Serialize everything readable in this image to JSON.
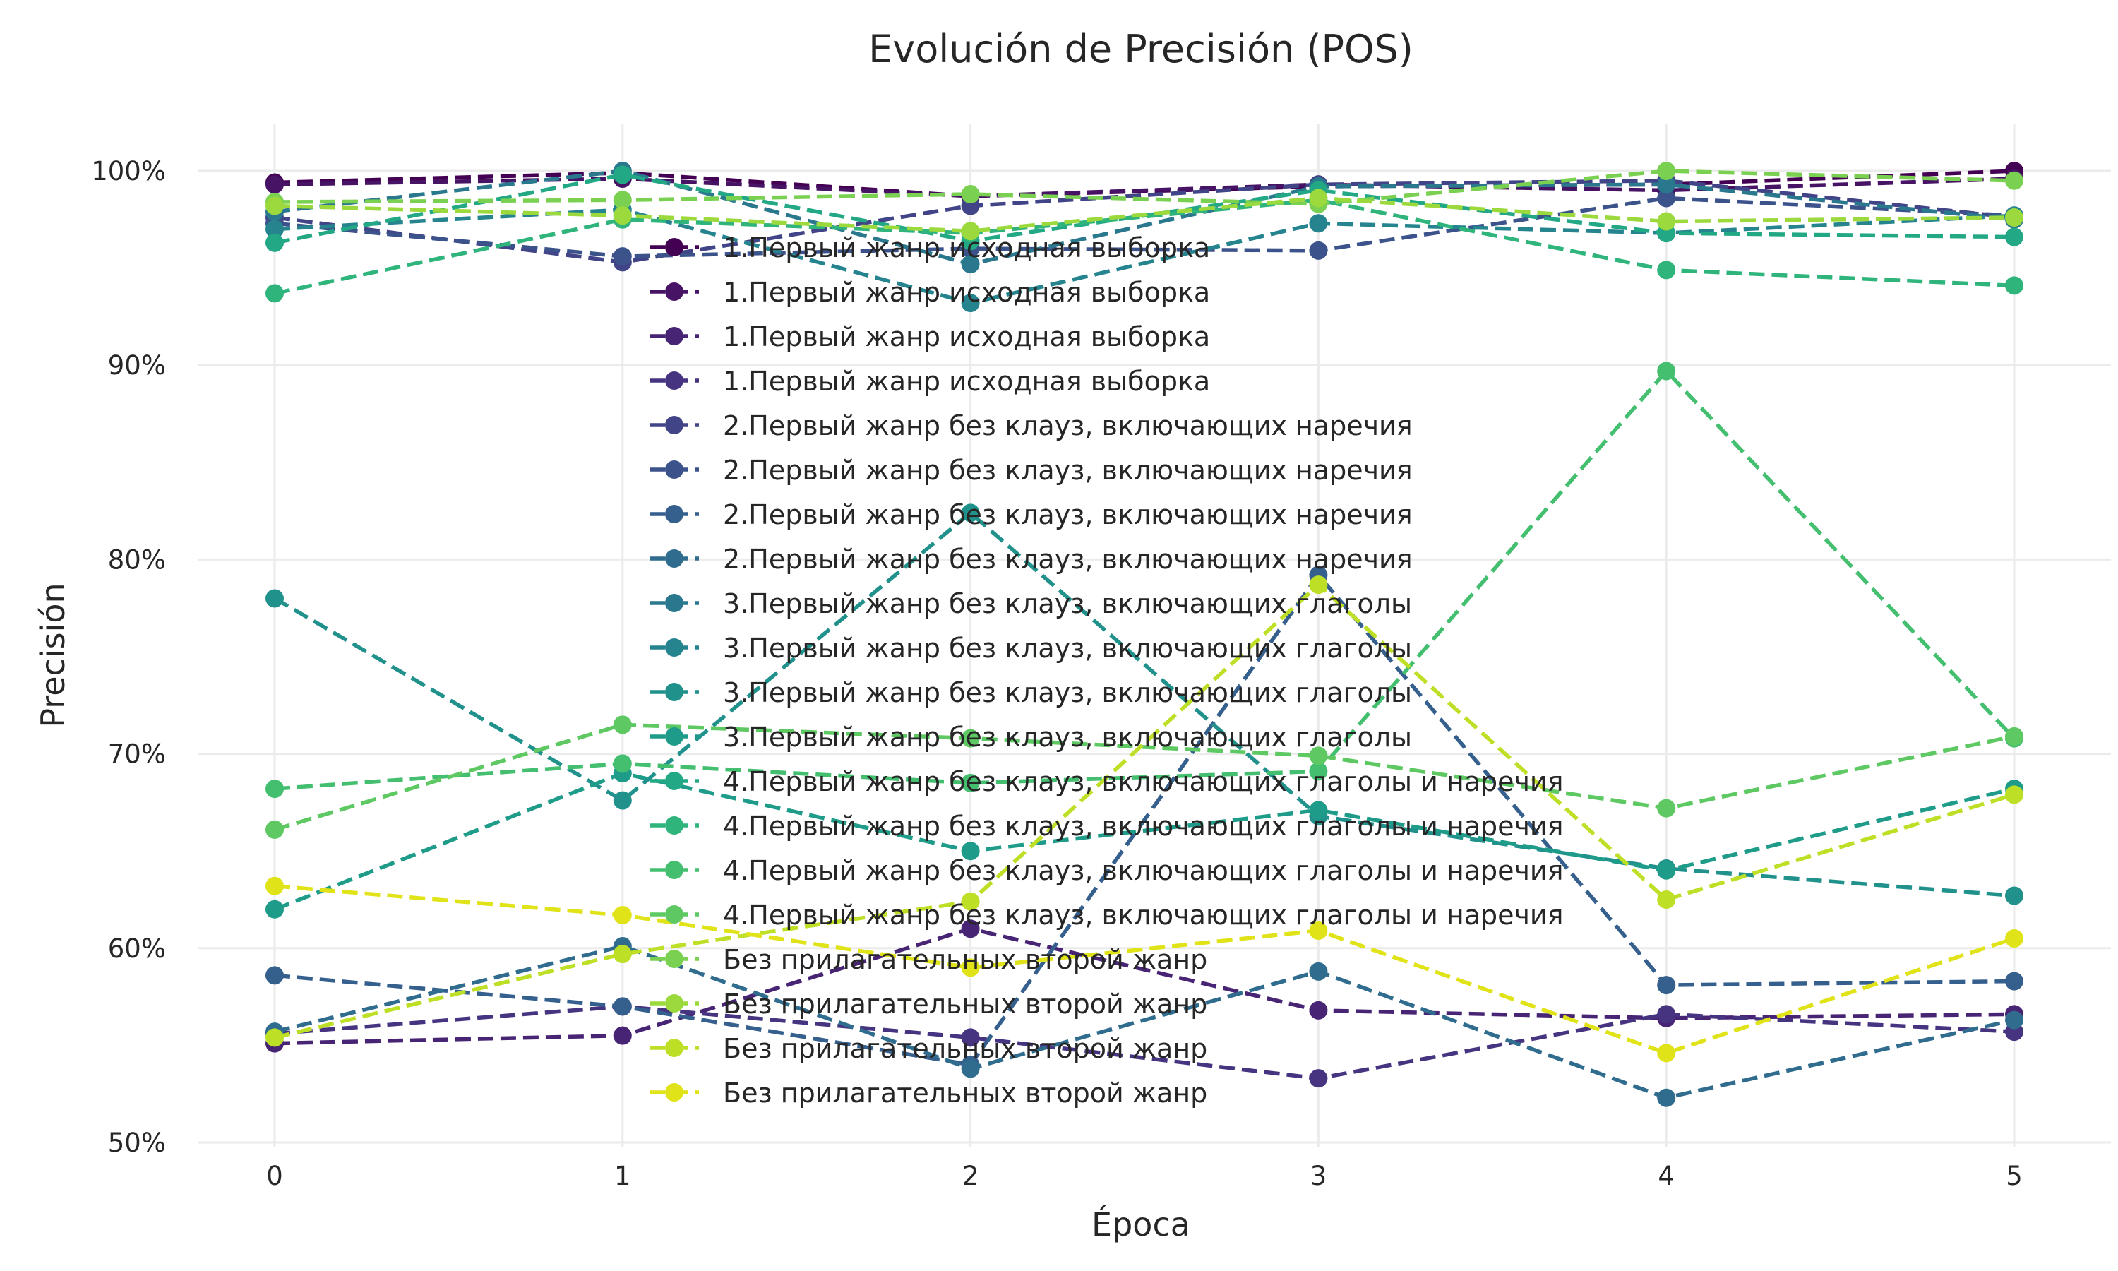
{
  "chart_data": {
    "type": "line",
    "title": "Evolución de Precisión (POS)",
    "xlabel": "Época",
    "ylabel": "Precisión",
    "x": [
      0,
      1,
      2,
      3,
      4,
      5
    ],
    "x_ticks": [
      "0",
      "1",
      "2",
      "3",
      "4",
      "5"
    ],
    "y_ticks": [
      "50%",
      "60%",
      "70%",
      "80%",
      "90%",
      "100%"
    ],
    "y_tick_values": [
      50,
      60,
      70,
      80,
      90,
      100
    ],
    "xlim": [
      -0.4,
      5.25
    ],
    "ylim": [
      50,
      102.5
    ],
    "grid": true,
    "legend_position": "center",
    "series": [
      {
        "name": "1.Первый жанр исходная выборка",
        "color": "#440154",
        "values": [
          99.4,
          99.9,
          98.7,
          99.2,
          99.3,
          100
        ]
      },
      {
        "name": "1.Первый жанр исходная выборка",
        "color": "#471365",
        "values": [
          99.3,
          99.6,
          98.7,
          99.3,
          99.0,
          99.6
        ]
      },
      {
        "name": "1.Первый жанр исходная выборка",
        "color": "#482475",
        "values": [
          55.1,
          55.5,
          61.0,
          56.8,
          56.4,
          56.6
        ]
      },
      {
        "name": "1.Первый жанр исходная выборка",
        "color": "#463480",
        "values": [
          55.6,
          57.0,
          55.4,
          53.3,
          56.6,
          55.7
        ]
      },
      {
        "name": "2.Первый жанр без клауз, включающих наречия",
        "color": "#414487",
        "values": [
          97.6,
          95.3,
          98.2,
          99.3,
          99.5,
          97.6
        ]
      },
      {
        "name": "2.Первый жанр без клауз, включающих наречия",
        "color": "#3b528b",
        "values": [
          97.3,
          95.6,
          96.0,
          95.9,
          98.6,
          97.7
        ]
      },
      {
        "name": "2.Первый жанр без клауз, включающих наречия",
        "color": "#355f8d",
        "values": [
          58.6,
          57.0,
          54.0,
          79.2,
          58.1,
          58.3
        ]
      },
      {
        "name": "2.Первый жанр без клауз, включающих наречия",
        "color": "#2f6c8e",
        "values": [
          55.7,
          60.1,
          53.8,
          58.8,
          52.3,
          56.3
        ]
      },
      {
        "name": "3.Первый жанр без клауз, включающих глаголы",
        "color": "#2a788e",
        "values": [
          97.9,
          100,
          95.2,
          99.2,
          99.3,
          97.5
        ]
      },
      {
        "name": "3.Первый жанр без клауз, включающих глаголы",
        "color": "#25848e",
        "values": [
          97.0,
          98.0,
          93.2,
          97.3,
          96.8,
          97.7
        ]
      },
      {
        "name": "3.Первый жанр без клауз, включающих глаголы",
        "color": "#21918c",
        "values": [
          78.0,
          67.6,
          82.4,
          66.8,
          64.1,
          62.7
        ]
      },
      {
        "name": "3.Первый жанр без клауз, включающих глаголы",
        "color": "#1e9c89",
        "values": [
          62.0,
          69.0,
          65.0,
          67.1,
          64.0,
          68.2
        ]
      },
      {
        "name": "4.Первый жанр без клауз, включающих глаголы и наречия",
        "color": "#22a884",
        "values": [
          96.3,
          99.8,
          96.4,
          99.0,
          96.8,
          96.6
        ]
      },
      {
        "name": "4.Первый жанр без клауз, включающих глаголы и наречия",
        "color": "#2fb47c",
        "values": [
          93.7,
          97.5,
          96.8,
          98.5,
          94.9,
          94.1
        ]
      },
      {
        "name": "4.Первый жанр без клауз, включающих глаголы и наречия",
        "color": "#44bf70",
        "values": [
          68.2,
          69.5,
          68.5,
          69.1,
          89.7,
          70.8
        ]
      },
      {
        "name": "4.Первый жанр без клауз, включающих глаголы и наречия",
        "color": "#5ec962",
        "values": [
          66.1,
          71.5,
          70.8,
          69.9,
          67.2,
          70.9
        ]
      },
      {
        "name": "Без прилагательных второй жанр",
        "color": "#7ad151",
        "values": [
          98.4,
          98.5,
          98.8,
          98.3,
          100,
          99.5
        ]
      },
      {
        "name": "Без прилагательных второй жанр",
        "color": "#9bd93c",
        "values": [
          98.2,
          97.7,
          96.9,
          98.6,
          97.4,
          97.6
        ]
      },
      {
        "name": "Без прилагательных второй жанр",
        "color": "#bddf26",
        "values": [
          55.4,
          59.7,
          62.4,
          78.7,
          62.5,
          67.9
        ]
      },
      {
        "name": "Без прилагательных второй жанр",
        "color": "#dfe318",
        "values": [
          63.2,
          61.7,
          59.0,
          60.9,
          54.6,
          60.5
        ]
      }
    ]
  }
}
